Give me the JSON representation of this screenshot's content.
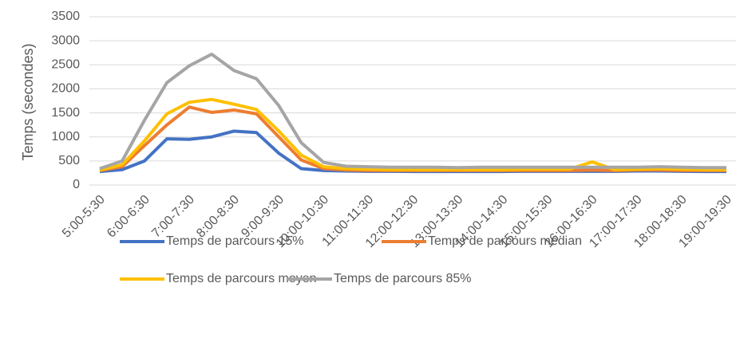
{
  "chart_data": {
    "type": "line",
    "y_label": "Temps (secondes)",
    "categories": [
      "5:00-5:30",
      null,
      "6:00-6:30",
      null,
      "7:00-7:30",
      null,
      "8:00-8:30",
      null,
      "9:00-9:30",
      null,
      "10:00-10:30",
      null,
      "11:00-11:30",
      null,
      "12:00-12:30",
      null,
      "13:00-13:30",
      null,
      "14:00-14:30",
      null,
      "15:00-15:30",
      null,
      "16:00-16:30",
      null,
      "17:00-17:30",
      null,
      "18:00-18:30",
      null,
      "19:00-19:30"
    ],
    "series": [
      {
        "name": "Temps de parcours 15%",
        "color": "#4472c4",
        "values": [
          280,
          320,
          500,
          960,
          950,
          1000,
          1120,
          1090,
          660,
          340,
          300,
          290,
          285,
          285,
          280,
          280,
          280,
          280,
          280,
          285,
          285,
          285,
          285,
          285,
          290,
          290,
          285,
          280,
          280
        ]
      },
      {
        "name": "Temps de parcours médian",
        "color": "#ed7d31",
        "values": [
          300,
          380,
          820,
          1250,
          1620,
          1510,
          1560,
          1480,
          1000,
          520,
          340,
          310,
          300,
          300,
          300,
          300,
          300,
          300,
          300,
          300,
          300,
          300,
          310,
          300,
          310,
          310,
          300,
          300,
          300
        ]
      },
      {
        "name": "Temps de parcours moyen",
        "color": "#ffc000",
        "values": [
          310,
          420,
          920,
          1480,
          1720,
          1780,
          1680,
          1570,
          1120,
          620,
          380,
          340,
          330,
          320,
          320,
          320,
          320,
          320,
          320,
          330,
          330,
          330,
          480,
          320,
          330,
          340,
          330,
          320,
          320
        ]
      },
      {
        "name": "Temps de parcours 85%",
        "color": "#a5a5a5",
        "values": [
          340,
          500,
          1350,
          2130,
          2480,
          2720,
          2380,
          2210,
          1650,
          880,
          470,
          390,
          380,
          370,
          370,
          370,
          360,
          370,
          370,
          370,
          370,
          370,
          370,
          370,
          370,
          380,
          370,
          360,
          360
        ]
      }
    ],
    "ylim": [
      0,
      3500
    ],
    "yticks": [
      0,
      500,
      1000,
      1500,
      2000,
      2500,
      3000,
      3500
    ],
    "grid": true
  }
}
